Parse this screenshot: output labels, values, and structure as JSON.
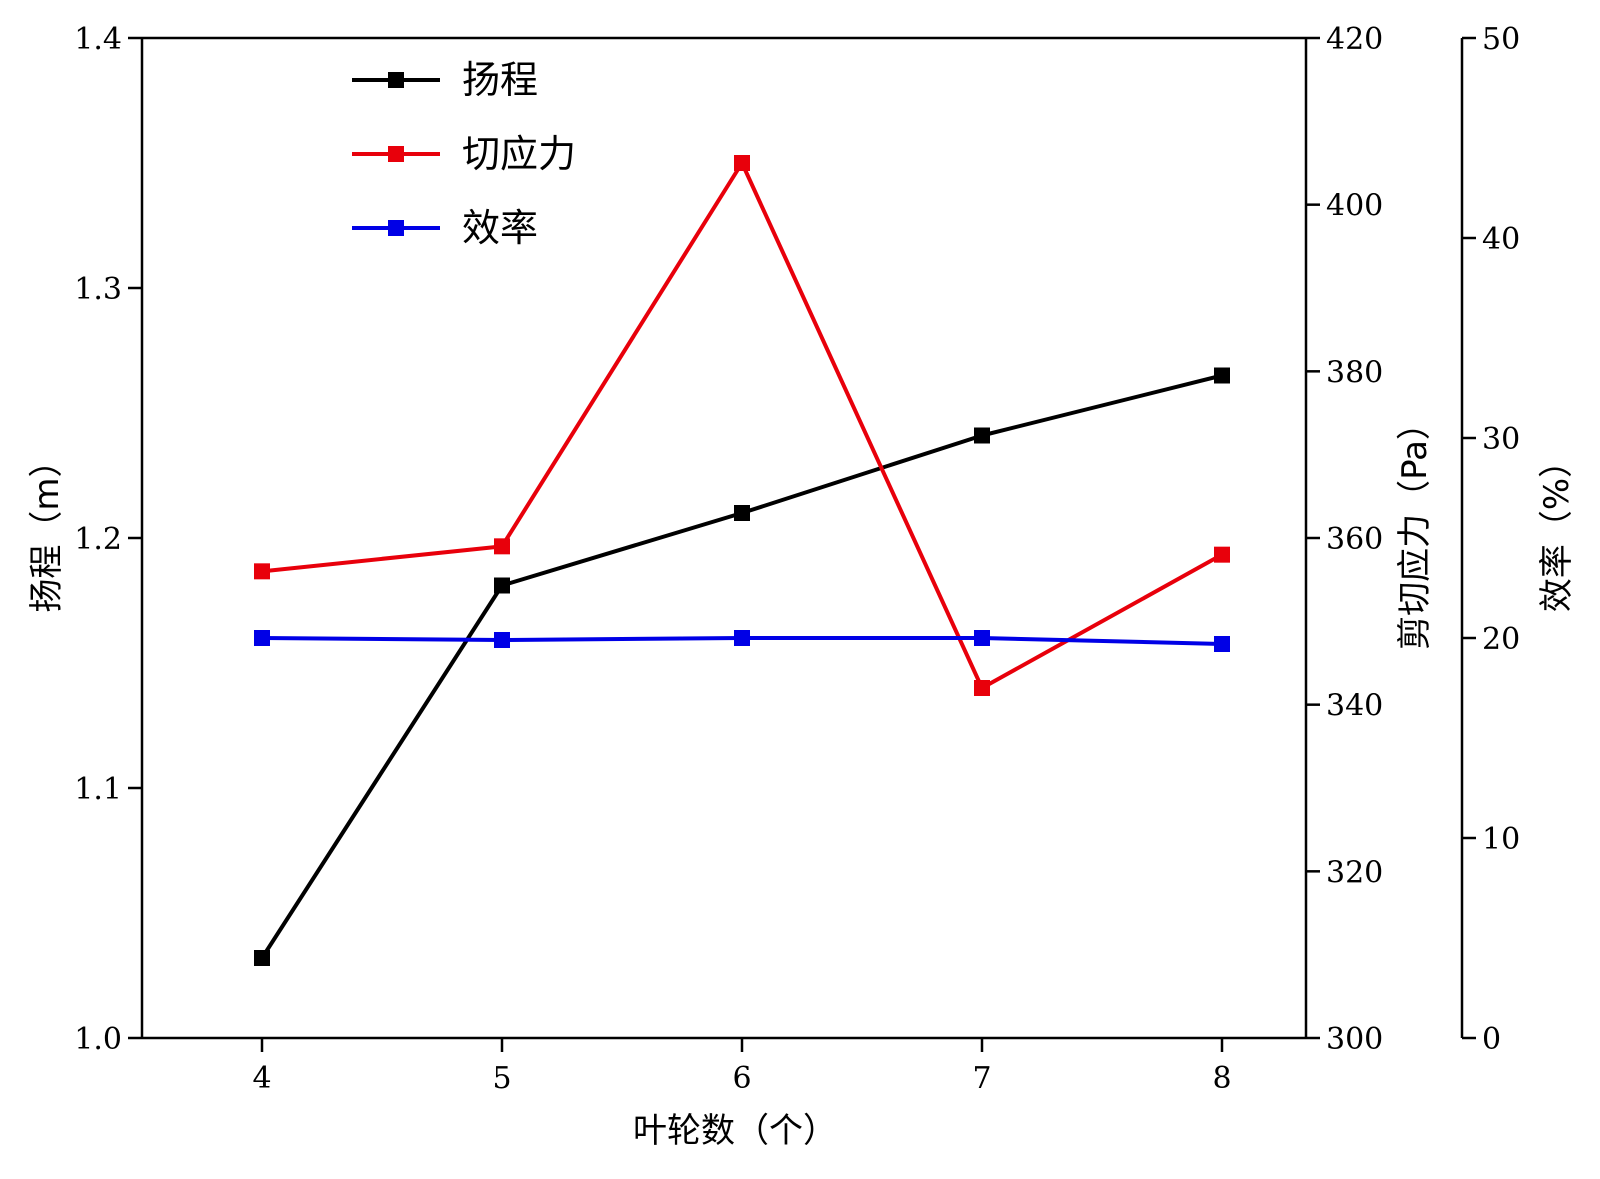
{
  "chart_data": {
    "type": "line",
    "x": [
      4,
      5,
      6,
      7,
      8
    ],
    "xlabel": "叶轮数（个）",
    "xlim": [
      3.5,
      8.35
    ],
    "series": [
      {
        "name": "扬程",
        "axis": "y1",
        "color": "#000000",
        "values": [
          1.032,
          1.181,
          1.21,
          1.241,
          1.265
        ]
      },
      {
        "name": "切应力",
        "axis": "y2",
        "color": "#e8000b",
        "values": [
          356.0,
          359.0,
          405.0,
          342.0,
          358.0
        ]
      },
      {
        "name": "效率",
        "axis": "y3",
        "color": "#0000e6",
        "values": [
          20.0,
          19.9,
          20.0,
          20.0,
          19.7
        ]
      }
    ],
    "y1": {
      "label": "扬程（m）",
      "ylim": [
        1.0,
        1.4
      ],
      "ticks": [
        "1.0",
        "1.1",
        "1.2",
        "1.3",
        "1.4"
      ]
    },
    "y2": {
      "label": "剪切应力（Pa）",
      "ylim": [
        300,
        420
      ],
      "ticks": [
        "300",
        "320",
        "340",
        "360",
        "380",
        "400",
        "420"
      ]
    },
    "y3": {
      "label": "效率（%）",
      "ylim": [
        0,
        50
      ],
      "ticks": [
        "0",
        "10",
        "20",
        "30",
        "40",
        "50"
      ]
    },
    "legend_position": "top-left",
    "grid": false
  }
}
